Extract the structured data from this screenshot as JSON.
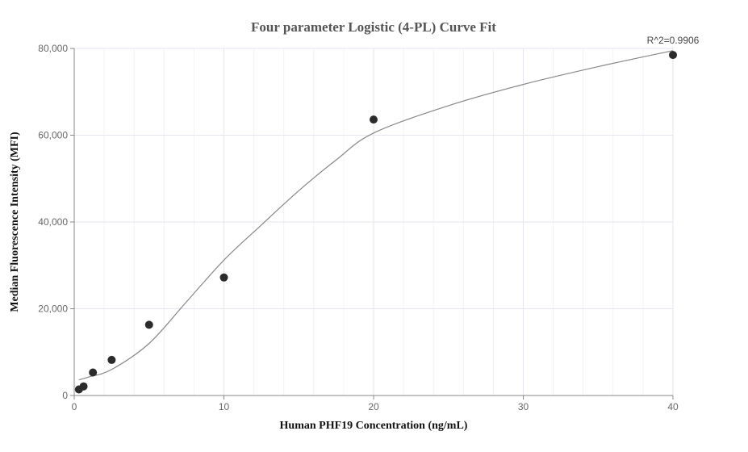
{
  "chart_data": {
    "type": "scatter",
    "title": "Four parameter Logistic (4-PL) Curve Fit",
    "xlabel": "Human PHF19 Concentration (ng/mL)",
    "ylabel": "Median Fluorescence Intensity (MFI)",
    "xlim": [
      0,
      40
    ],
    "ylim": [
      0,
      80000
    ],
    "x_ticks": [
      0,
      10,
      20,
      30,
      40
    ],
    "y_ticks": [
      0,
      20000,
      40000,
      60000,
      80000
    ],
    "x_tick_labels": [
      "0",
      "10",
      "20",
      "30",
      "40"
    ],
    "y_tick_labels": [
      "0",
      "20,000",
      "40,000",
      "60,000",
      "80,000"
    ],
    "x_minor_step": 2,
    "grid": true,
    "annotation": "R^2=0.9906",
    "colors": {
      "points": "#2b2b2b",
      "curve": "#888888"
    },
    "series": [
      {
        "kind": "points",
        "x": [
          0.3125,
          0.625,
          1.25,
          2.5,
          5,
          10,
          20,
          40
        ],
        "y": [
          1400,
          2100,
          5300,
          8200,
          16300,
          27200,
          63600,
          78500
        ]
      },
      {
        "kind": "fit-curve",
        "x": [
          0.3125,
          1,
          2.5,
          5,
          7.5,
          10,
          12.5,
          15,
          17.5,
          20,
          25,
          30,
          35,
          40
        ],
        "y": [
          3600,
          4300,
          6000,
          12000,
          21600,
          31200,
          39300,
          47200,
          54300,
          60500,
          66800,
          71700,
          75800,
          79500
        ]
      }
    ]
  }
}
